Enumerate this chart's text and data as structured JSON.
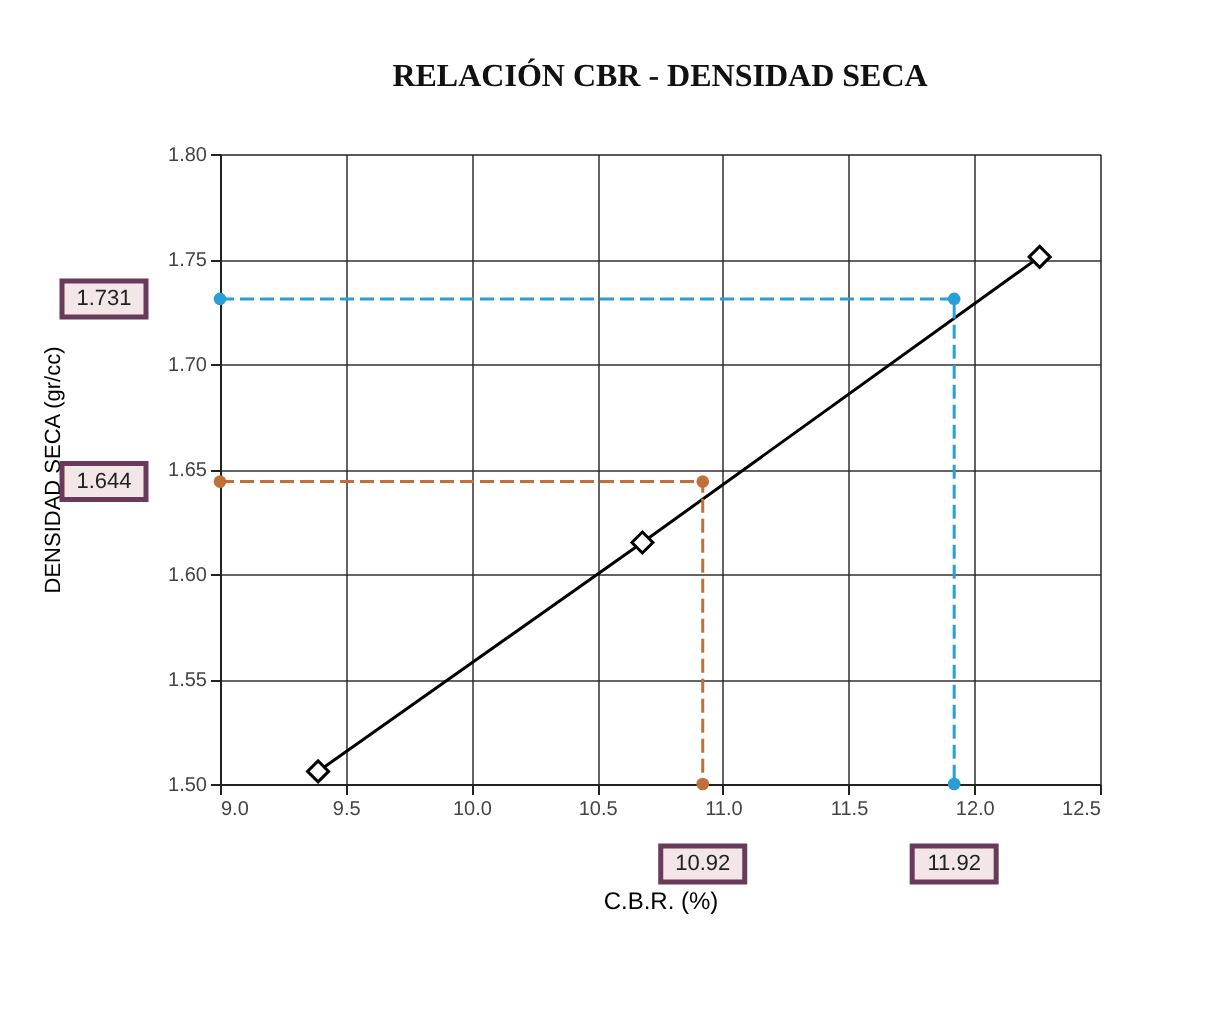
{
  "chart_data": {
    "type": "line",
    "title": "RELACIÓN CBR - DENSIDAD SECA",
    "xlabel": "C.B.R. (%)",
    "ylabel": "DENSIDAD SECA (gr/cc)",
    "xlim": [
      9.0,
      12.5
    ],
    "xticks": [
      {
        "value": 9.0,
        "label": "9.0"
      },
      9.5,
      {
        "value": 10.0,
        "label": "10.0"
      },
      10.5,
      {
        "value": 11.0,
        "label": "11.0"
      },
      11.5,
      {
        "value": 12.0,
        "label": "12.0"
      },
      12.5
    ],
    "ylim": [
      1.5,
      1.8
    ],
    "yticks": [
      {
        "value": 1.5,
        "label": "1.50"
      },
      1.55,
      {
        "value": 1.6,
        "label": "1.60"
      },
      1.65,
      {
        "value": 1.7,
        "label": "1.70"
      },
      1.75,
      {
        "value": 1.8,
        "label": "1.80"
      }
    ],
    "grid": true,
    "series": [
      {
        "color": "#000000",
        "x": [
          9.39,
          10.68,
          12.26
        ],
        "values": [
          1.506,
          1.615,
          1.751
        ],
        "marker": "diamond",
        "line_style": "solid"
      },
      {
        "color": "#c0703a",
        "x": [
          9.0,
          10.92,
          10.92
        ],
        "values": [
          1.644,
          1.644,
          1.5
        ],
        "marker": "circle",
        "line_style": "dashed"
      },
      {
        "color": "#2a9fd6",
        "x": [
          9.0,
          11.92,
          11.92
        ],
        "values": [
          1.731,
          1.731,
          1.5
        ],
        "marker": "circle",
        "line_style": "dashed"
      }
    ],
    "annotations": [
      "1.644",
      "10.92",
      "1.731",
      "11.92"
    ]
  }
}
